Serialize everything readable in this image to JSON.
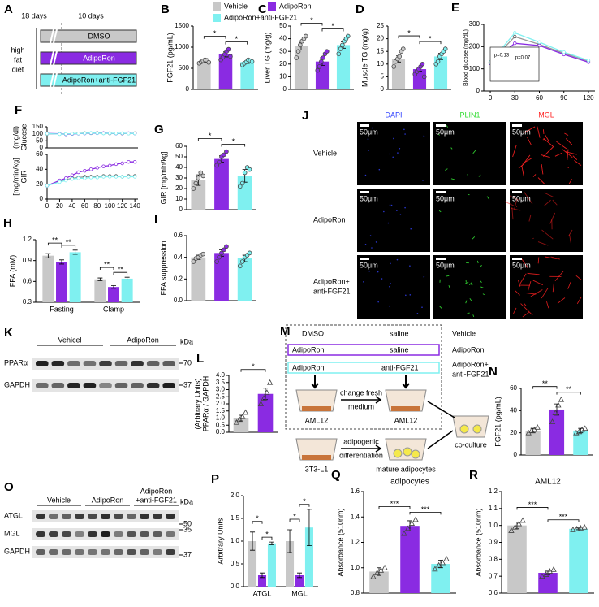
{
  "groups": [
    {
      "name": "Vehicle",
      "color": "#c8c8c8"
    },
    {
      "name": "AdipoRon",
      "color": "#8a2be2"
    },
    {
      "name": "AdipoRon+anti-FGF21",
      "color": "#7ff0f0"
    }
  ],
  "panel_a": {
    "label": "A",
    "periods": [
      "18 days",
      "10 days"
    ],
    "diet": [
      "high",
      "fat",
      "diet"
    ],
    "treatments": [
      "DMSO",
      "AdipoRon",
      "AdipoRon+anti-FGF21"
    ]
  },
  "chart_data": [
    {
      "type": "bar",
      "panel": "B",
      "ylabel": "FGF21 (pg/mL)",
      "ylim": [
        0,
        1500
      ],
      "yticks": [
        0,
        500,
        1000,
        1500
      ],
      "values": [
        660,
        830,
        650
      ],
      "errors": [
        25,
        60,
        35
      ],
      "points": [
        [
          620,
          650,
          680,
          700,
          690,
          640
        ],
        [
          700,
          760,
          830,
          900,
          950,
          780
        ],
        [
          580,
          620,
          650,
          700,
          680,
          660
        ]
      ],
      "marker": "circle",
      "significance": [
        "*",
        "*"
      ]
    },
    {
      "type": "bar",
      "panel": "C",
      "ylabel": "Liver TG (mg/g)",
      "ylim": [
        0,
        50
      ],
      "yticks": [
        0,
        10,
        20,
        30,
        40,
        50
      ],
      "values": [
        34,
        22,
        35
      ],
      "errors": [
        3,
        3,
        2.5
      ],
      "points": [
        [
          25,
          30,
          35,
          38,
          40,
          42
        ],
        [
          15,
          18,
          22,
          25,
          28,
          30
        ],
        [
          28,
          32,
          35,
          38,
          40,
          42
        ]
      ],
      "marker": "circle",
      "significance": [
        "*",
        "*"
      ]
    },
    {
      "type": "bar",
      "panel": "D",
      "ylabel": "Muscle TG (mg/g)",
      "ylim": [
        0,
        25
      ],
      "yticks": [
        0,
        5,
        10,
        15,
        20,
        25
      ],
      "values": [
        12,
        8,
        13
      ],
      "errors": [
        1.2,
        0.8,
        1.2
      ],
      "points": [
        [
          9,
          11,
          12,
          13,
          15,
          16
        ],
        [
          6,
          7,
          8,
          9,
          10,
          5
        ],
        [
          10,
          11,
          13,
          14,
          15,
          16
        ]
      ],
      "marker": "circle",
      "significance": [
        "*",
        "*"
      ]
    },
    {
      "type": "line",
      "panel": "E",
      "ylabel": "Blood glucose (mg/dL)",
      "x": [
        0,
        30,
        60,
        90,
        120
      ],
      "xlim": [
        -8,
        128
      ],
      "xticks": [
        0,
        30,
        60,
        90,
        120
      ],
      "ylim": [
        0,
        300
      ],
      "yticks": [
        0,
        100,
        200,
        300
      ],
      "series": [
        {
          "values": [
            130,
            245,
            210,
            170,
            135
          ]
        },
        {
          "values": [
            125,
            215,
            205,
            165,
            130
          ]
        },
        {
          "values": [
            130,
            262,
            220,
            175,
            138
          ]
        }
      ],
      "annotations": [
        "p=0.13",
        "p=0.07"
      ]
    },
    {
      "type": "line",
      "panel": "F",
      "ylabel": [
        "Glucose",
        "(mg/dl)"
      ],
      "x": [
        0,
        20,
        30,
        40,
        50,
        60,
        70,
        80,
        90,
        100,
        110,
        120,
        130,
        140
      ],
      "xlim": [
        0,
        145
      ],
      "ylim": [
        0,
        150
      ],
      "yticks": [
        0,
        50,
        100,
        150
      ],
      "series": [
        {
          "values": [
            100,
            99,
            98,
            100,
            103,
            105,
            104,
            106,
            104,
            103,
            103,
            102,
            103,
            104
          ]
        },
        {
          "values": [
            102,
            100,
            97,
            99,
            101,
            103,
            105,
            104,
            105,
            104,
            102,
            103,
            104,
            103
          ]
        },
        {
          "values": [
            101,
            98,
            99,
            101,
            102,
            104,
            106,
            105,
            103,
            104,
            103,
            104,
            102,
            103
          ]
        }
      ]
    },
    {
      "type": "line",
      "ylabel": [
        "GIR",
        "[mg/min/kg]"
      ],
      "x": [
        0,
        20,
        30,
        40,
        50,
        60,
        70,
        80,
        90,
        100,
        110,
        120,
        130,
        140
      ],
      "xlim": [
        0,
        145
      ],
      "xticks": [
        0,
        20,
        40,
        60,
        80,
        100,
        120,
        140
      ],
      "ylim": [
        0,
        60
      ],
      "yticks": [
        0,
        20,
        40,
        60
      ],
      "series": [
        {
          "values": [
            18,
            24,
            26,
            28,
            29,
            30,
            30,
            30,
            31,
            31,
            31,
            30,
            31,
            31
          ]
        },
        {
          "values": [
            18,
            25,
            28,
            32,
            36,
            38,
            40,
            42,
            44,
            45,
            47,
            48,
            50,
            50
          ]
        },
        {
          "values": [
            18,
            23,
            25,
            27,
            28,
            28,
            29,
            29,
            30,
            30,
            30,
            30,
            30,
            30
          ]
        }
      ]
    },
    {
      "type": "bar",
      "panel": "G",
      "ylabel": "GIR [mg/min/kg]",
      "ylim": [
        0,
        60
      ],
      "yticks": [
        0,
        10,
        20,
        30,
        40,
        50,
        60
      ],
      "values": [
        28,
        48,
        32
      ],
      "errors": [
        5,
        3,
        6
      ],
      "points": [
        [
          20,
          25,
          30,
          35,
          32
        ],
        [
          42,
          45,
          50,
          52,
          55
        ],
        [
          22,
          25,
          35,
          40,
          38
        ]
      ],
      "marker": "circle",
      "significance": [
        "*",
        "*"
      ]
    },
    {
      "type": "grouped_bar",
      "panel": "H",
      "ylabel": "FFA (mM)",
      "categories": [
        "Fasting",
        "Clamp"
      ],
      "ylim": [
        0.3,
        1.2
      ],
      "yticks": [
        0.3,
        0.6,
        0.9,
        1.2
      ],
      "series": [
        {
          "values": [
            0.97,
            0.63
          ],
          "errors": [
            0.03,
            0.02
          ]
        },
        {
          "values": [
            0.88,
            0.52
          ],
          "errors": [
            0.03,
            0.02
          ]
        },
        {
          "values": [
            1.02,
            0.64
          ],
          "errors": [
            0.03,
            0.02
          ]
        }
      ],
      "significance": [
        [
          "**",
          "**"
        ],
        [
          "**",
          "**"
        ]
      ]
    },
    {
      "type": "bar",
      "panel": "I",
      "ylabel": "FFA suppression",
      "ylim": [
        0,
        0.6
      ],
      "yticks": [
        {
          "value": 0,
          "label": "0.0"
        },
        0.2,
        0.4,
        0.6
      ],
      "values": [
        0.4,
        0.44,
        0.39
      ],
      "errors": [
        0.02,
        0.03,
        0.03
      ],
      "points": [
        [
          0.36,
          0.39,
          0.4,
          0.42,
          0.43
        ],
        [
          0.36,
          0.4,
          0.44,
          0.47,
          0.5
        ],
        [
          0.32,
          0.36,
          0.4,
          0.42,
          0.44
        ]
      ],
      "marker": "circle",
      "significance": []
    },
    {
      "type": "bar",
      "panel": "L",
      "ylabel": [
        "PPARα / GAPDH",
        "(Arbitrary Units)"
      ],
      "ylim": [
        0,
        4
      ],
      "yticks": [
        {
          "value": 0,
          "label": "0.0"
        },
        0.5,
        {
          "value": 1,
          "label": "1.0"
        },
        1.5,
        {
          "value": 2,
          "label": "2.0"
        },
        2.5,
        {
          "value": 3,
          "label": "3.0"
        },
        3.5,
        {
          "value": 4,
          "label": "4.0"
        }
      ],
      "values": [
        1.0,
        2.7
      ],
      "errors": [
        0.2,
        0.4
      ],
      "points": [
        [
          0.7,
          0.9,
          1.1,
          1.4
        ],
        [
          2.0,
          2.4,
          2.8,
          3.5
        ]
      ],
      "marker": "triangle",
      "significance": [
        "*"
      ]
    },
    {
      "type": "bar",
      "panel": "N",
      "ylabel": "FGF21 (pg/mL)",
      "ylim": [
        0,
        60
      ],
      "yticks": [
        0,
        20,
        40,
        60
      ],
      "values": [
        22,
        41,
        22
      ],
      "errors": [
        2,
        5,
        2
      ],
      "points": [
        [
          20,
          22,
          23,
          25
        ],
        [
          30,
          38,
          45,
          50
        ],
        [
          20,
          21,
          23,
          24
        ]
      ],
      "marker": "triangle",
      "significance": [
        "**",
        "**"
      ]
    },
    {
      "type": "grouped_bar",
      "panel": "P",
      "ylabel": "Arbitrary Units",
      "categories": [
        "ATGL",
        "MGL"
      ],
      "ylim": [
        0,
        2
      ],
      "yticks": [
        {
          "value": 0,
          "label": "0.0"
        },
        0.5,
        {
          "value": 1,
          "label": "1.0"
        },
        1.5,
        {
          "value": 2,
          "label": "2.0"
        }
      ],
      "series": [
        {
          "values": [
            1.0,
            1.0
          ],
          "errors": [
            0.2,
            0.25
          ]
        },
        {
          "values": [
            0.25,
            0.25
          ],
          "errors": [
            0.05,
            0.05
          ]
        },
        {
          "values": [
            0.95,
            1.3
          ],
          "errors": [
            0.03,
            0.4
          ]
        }
      ],
      "significance": [
        [
          "*",
          "*"
        ],
        [
          "*",
          "*"
        ]
      ]
    },
    {
      "type": "bar",
      "panel": "Q",
      "title": "adipocytes",
      "ylabel": "Absorbance (510nm)",
      "ylim": [
        0.8,
        1.6
      ],
      "yticks": [
        0.8,
        {
          "value": 1,
          "label": "1.0"
        },
        1.2,
        1.4,
        1.6
      ],
      "values": [
        0.97,
        1.33,
        1.03
      ],
      "errors": [
        0.03,
        0.04,
        0.03
      ],
      "points": [
        [
          0.93,
          0.96,
          0.98,
          1.0
        ],
        [
          1.27,
          1.31,
          1.35,
          1.38
        ],
        [
          0.99,
          1.02,
          1.04,
          1.07
        ]
      ],
      "marker": "triangle",
      "significance": [
        "***",
        "***"
      ]
    },
    {
      "type": "bar",
      "panel": "R",
      "title": "AML12",
      "ylabel": "Absorbance (510nm)",
      "ylim": [
        0.6,
        1.2
      ],
      "yticks": [
        0.6,
        0.7,
        0.8,
        0.9,
        {
          "value": 1,
          "label": "1.0"
        },
        1.1,
        1.2
      ],
      "values": [
        1.0,
        0.72,
        0.98
      ],
      "errors": [
        0.02,
        0.01,
        0.005
      ],
      "points": [
        [
          0.97,
          0.99,
          1.01,
          1.03
        ],
        [
          0.7,
          0.71,
          0.73,
          0.74
        ],
        [
          0.975,
          0.98,
          0.985,
          0.99
        ]
      ],
      "marker": "triangle",
      "significance": [
        "***",
        "***"
      ]
    }
  ],
  "panel_j": {
    "label": "J",
    "channels": [
      "DAPI",
      "PLIN1",
      "MGL"
    ],
    "channel_colors": [
      "#3344ff",
      "#33dd33",
      "#ff2222"
    ],
    "rows": [
      [
        "Vehicle"
      ],
      [
        "AdipoRon"
      ],
      [
        "AdipoRon+",
        "anti-FGF21"
      ]
    ],
    "scale": "50μm"
  },
  "panel_k": {
    "label": "K",
    "groups": [
      "Vehicel",
      "AdipoRon"
    ],
    "unit": "kDa",
    "proteins": [
      "PPARα",
      "GAPDH"
    ],
    "markers": [
      "70",
      "37"
    ]
  },
  "panel_m": {
    "label": "M",
    "rows": [
      [
        "DMSO",
        "saline",
        "Vehicle"
      ],
      [
        "AdipoRon",
        "saline",
        "AdipoRon"
      ],
      [
        "AdipoRon",
        "anti-FGF21",
        "AdipoRon+",
        "anti-FGF21"
      ]
    ],
    "change": [
      "change fresh",
      "medium"
    ],
    "differentiation": [
      "adipogenic",
      "differentiation"
    ],
    "cells": [
      "AML12",
      "AML12",
      "3T3-L1",
      "mature adipocytes",
      "co-culture"
    ]
  },
  "panel_o": {
    "label": "O",
    "groups": [
      [
        "Vehicle"
      ],
      [
        "AdipoRon"
      ],
      [
        "AdipoRon",
        "+anti-FGF21"
      ]
    ],
    "unit": "kDa",
    "proteins": [
      "ATGL",
      "MGL",
      "GAPDH"
    ],
    "markers": [
      "50",
      "35",
      "37"
    ]
  }
}
